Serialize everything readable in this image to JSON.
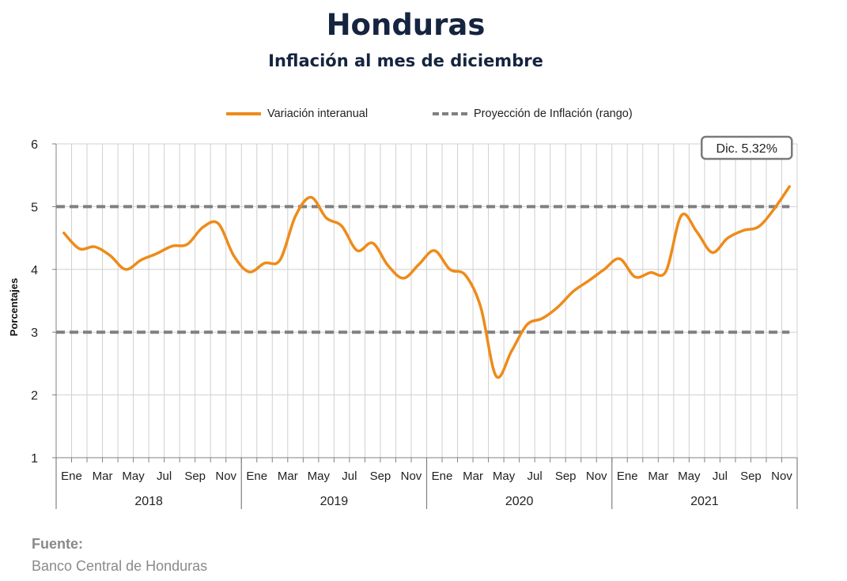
{
  "header": {
    "title": "Honduras",
    "subtitle": "Inflación al mes de diciembre"
  },
  "legend": {
    "series_label": "Variación interanual",
    "range_label": "Proyección de Inflación (rango)"
  },
  "source": {
    "label": "Fuente:",
    "text": "Banco Central de Honduras"
  },
  "colors": {
    "line": "#ee8b1a",
    "range": "#808080",
    "grid": "#d0d0d0",
    "title": "#15243f"
  },
  "chart_data": {
    "type": "line",
    "title": "Honduras",
    "subtitle": "Inflación al mes de diciembre",
    "xlabel": "",
    "ylabel": "Porcentajes",
    "ylim": [
      1,
      6
    ],
    "yticks": [
      1,
      2,
      3,
      4,
      5,
      6
    ],
    "grid": true,
    "legend_position": "top",
    "month_tick_labels": [
      "Ene",
      "Mar",
      "May",
      "Jul",
      "Sep",
      "Nov"
    ],
    "years": [
      "2018",
      "2019",
      "2020",
      "2021"
    ],
    "x": [
      "2018-01",
      "2018-02",
      "2018-03",
      "2018-04",
      "2018-05",
      "2018-06",
      "2018-07",
      "2018-08",
      "2018-09",
      "2018-10",
      "2018-11",
      "2018-12",
      "2019-01",
      "2019-02",
      "2019-03",
      "2019-04",
      "2019-05",
      "2019-06",
      "2019-07",
      "2019-08",
      "2019-09",
      "2019-10",
      "2019-11",
      "2019-12",
      "2020-01",
      "2020-02",
      "2020-03",
      "2020-04",
      "2020-05",
      "2020-06",
      "2020-07",
      "2020-08",
      "2020-09",
      "2020-10",
      "2020-11",
      "2020-12",
      "2021-01",
      "2021-02",
      "2021-03",
      "2021-04",
      "2021-05",
      "2021-06",
      "2021-07",
      "2021-08",
      "2021-09",
      "2021-10",
      "2021-11",
      "2021-12"
    ],
    "series": [
      {
        "name": "Variación interanual",
        "values": [
          4.58,
          4.33,
          4.36,
          4.22,
          4.0,
          4.15,
          4.25,
          4.37,
          4.4,
          4.67,
          4.73,
          4.22,
          3.96,
          4.1,
          4.15,
          4.85,
          5.15,
          4.82,
          4.69,
          4.3,
          4.42,
          4.06,
          3.86,
          4.08,
          4.3,
          4.0,
          3.91,
          3.4,
          2.3,
          2.7,
          3.12,
          3.22,
          3.4,
          3.65,
          3.82,
          4.0,
          4.17,
          3.88,
          3.95,
          3.97,
          4.86,
          4.6,
          4.27,
          4.5,
          4.62,
          4.68,
          4.96,
          5.32
        ]
      },
      {
        "name": "Proyección de Inflación (rango)",
        "upper": 5.0,
        "lower": 3.0
      }
    ],
    "annotation": "Dic. 5.32%"
  }
}
